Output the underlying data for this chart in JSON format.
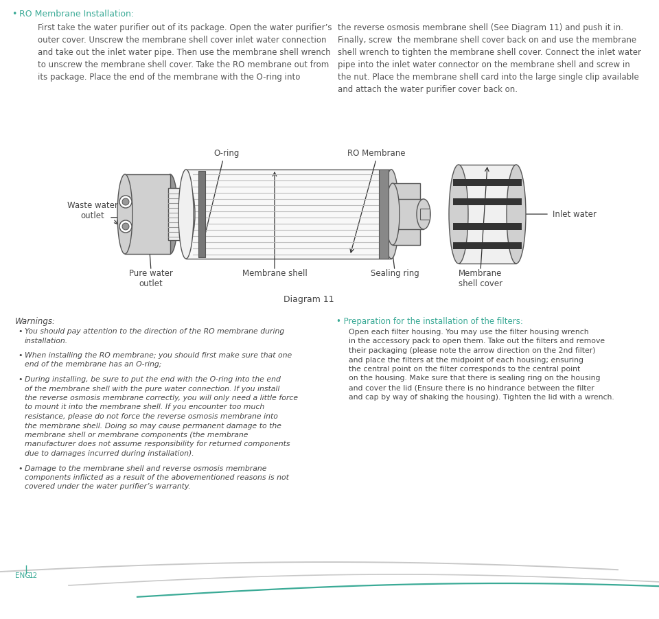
{
  "bg_color": "#ffffff",
  "teal_color": "#3aaa96",
  "dark_color": "#444444",
  "text_color": "#555555",
  "title_text": "RO Membrane Installation:",
  "left_col_text": [
    "First take the water purifier out of its package. Open the water purifier’s",
    "outer cover. Unscrew the membrane shell cover inlet water connection",
    "and take out the inlet water pipe. Then use the membrane shell wrench",
    "to unscrew the membrane shell cover. Take the RO membrane out from",
    "its package. Place the end of the membrane with the O-ring into"
  ],
  "right_col_text": [
    "the reverse osmosis membrane shell (See Diagram 11) and push it in.",
    "Finally, screw  the membrane shell cover back on and use the membrane",
    "shell wrench to tighten the membrane shell cover. Connect the inlet water",
    "pipe into the inlet water connector on the membrane shell and screw in",
    "the nut. Place the membrane shell card into the large single clip available",
    "and attach the water purifier cover back on."
  ],
  "diagram_label": "Diagram 11",
  "labels": {
    "o_ring": "O-ring",
    "ro_membrane": "RO Membrane",
    "waste_water": "Waste water\noutlet",
    "inlet_water": "Inlet water",
    "pure_water": "Pure water\noutlet",
    "membrane_shell": "Membrane shell",
    "sealing_ring": "Sealing ring",
    "membrane_shell_cover": "Membrane\nshell cover"
  },
  "warnings_title": "Warnings:",
  "warnings": [
    "You should pay attention to the direction of the RO membrane during\ninstallation.",
    "When installing the RO membrane; you should first make sure that one\nend of the membrane has an O-ring;",
    "During installing, be sure to put the end with the O-ring into the end\nof the membrane shell with the pure water connection. If you install\nthe reverse osmosis membrane correctly, you will only need a little force\nto mount it into the membrane shell. If you encounter too much\nresistance, please do not force the reverse osmosis membrane into\nthe membrane shell. Doing so may cause permanent damage to the\nmembrane shell or membrane components (the membrane\nmanufacturer does not assume responsibility for returned components\ndue to damages incurred during installation).",
    "Damage to the membrane shell and reverse osmosis membrane\ncomponents inflicted as a result of the abovementioned reasons is not\ncovered under the water purifier’s warranty."
  ],
  "prep_title": "Preparation for the installation of the filters:",
  "prep_text": "Open each filter housing. You may use the filter housing wrench\nin the accessory pack to open them. Take out the filters and remove\ntheir packaging (please note the arrow direction on the 2nd filter)\nand place the filters at the midpoint of each housing; ensuring\nthe central point on the filter corresponds to the central point\non the housing. Make sure that there is sealing ring on the housing\nand cover the lid (Ensure there is no hindrance between the filter\nand cap by way of shaking the housing). Tighten the lid with a wrench.",
  "footer_text": "ENG",
  "footer_page": "12"
}
